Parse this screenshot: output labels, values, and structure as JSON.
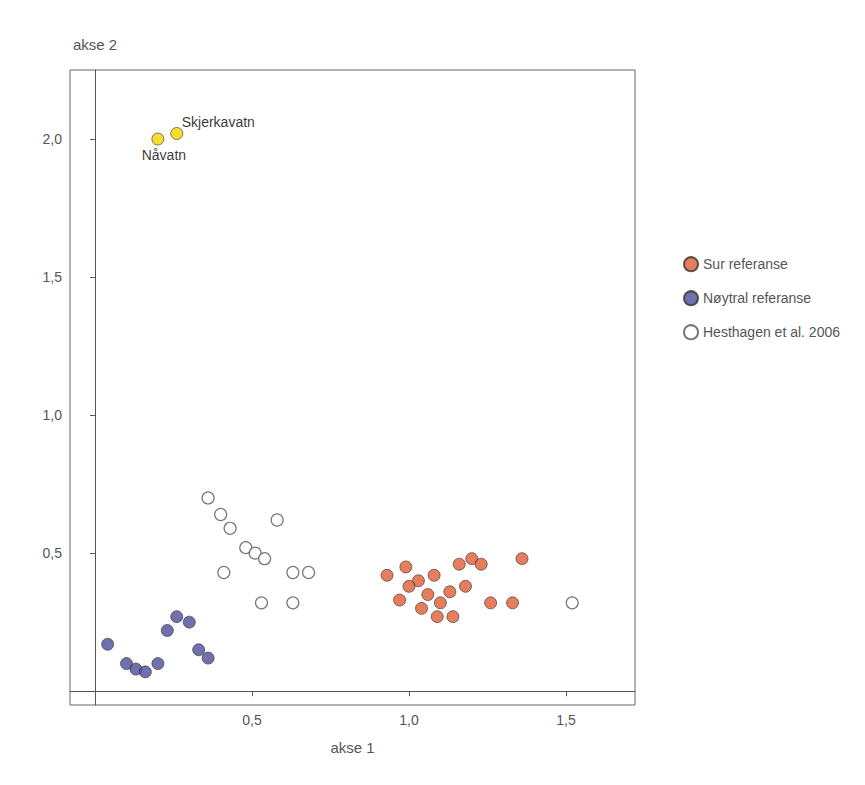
{
  "chart_data": {
    "type": "scatter",
    "xlabel": "akse 1",
    "ylabel": "akse 2",
    "xlim": [
      -0.08,
      1.72
    ],
    "ylim": [
      -0.05,
      2.25
    ],
    "xticks": [
      {
        "value": 0.5,
        "label": "0,5"
      },
      {
        "value": 1.0,
        "label": "1,0"
      },
      {
        "value": 1.5,
        "label": "1,5"
      }
    ],
    "yticks": [
      {
        "value": 0.5,
        "label": "0,5"
      },
      {
        "value": 1.0,
        "label": "1,0"
      },
      {
        "value": 1.5,
        "label": "1,5"
      },
      {
        "value": 2.0,
        "label": "2,0"
      }
    ],
    "grid": false,
    "legend": "right",
    "series": [
      {
        "name": "Sur referanse",
        "color": "#e05c35",
        "marker": "circle",
        "values": [
          [
            0.93,
            0.42
          ],
          [
            0.99,
            0.45
          ],
          [
            1.03,
            0.4
          ],
          [
            1.0,
            0.38
          ],
          [
            1.06,
            0.35
          ],
          [
            1.1,
            0.32
          ],
          [
            1.13,
            0.36
          ],
          [
            1.08,
            0.42
          ],
          [
            1.16,
            0.46
          ],
          [
            1.2,
            0.48
          ],
          [
            1.23,
            0.46
          ],
          [
            1.26,
            0.32
          ],
          [
            1.33,
            0.32
          ],
          [
            1.36,
            0.48
          ],
          [
            1.04,
            0.3
          ],
          [
            1.09,
            0.27
          ],
          [
            0.97,
            0.33
          ],
          [
            1.14,
            0.27
          ],
          [
            1.18,
            0.38
          ]
        ]
      },
      {
        "name": "Nøytral referanse",
        "color": "#4a4e9a",
        "marker": "circle",
        "values": [
          [
            0.04,
            0.17
          ],
          [
            0.1,
            0.1
          ],
          [
            0.13,
            0.08
          ],
          [
            0.16,
            0.07
          ],
          [
            0.2,
            0.1
          ],
          [
            0.23,
            0.22
          ],
          [
            0.26,
            0.27
          ],
          [
            0.3,
            0.25
          ],
          [
            0.33,
            0.15
          ],
          [
            0.36,
            0.12
          ]
        ]
      },
      {
        "name": "Hesthagen et al. 2006",
        "color": "#555555",
        "marker": "open circle",
        "values": [
          [
            0.36,
            0.7
          ],
          [
            0.4,
            0.64
          ],
          [
            0.43,
            0.59
          ],
          [
            0.48,
            0.52
          ],
          [
            0.51,
            0.5
          ],
          [
            0.54,
            0.48
          ],
          [
            0.58,
            0.62
          ],
          [
            0.41,
            0.43
          ],
          [
            0.63,
            0.43
          ],
          [
            0.68,
            0.43
          ],
          [
            0.53,
            0.32
          ],
          [
            0.63,
            0.32
          ],
          [
            1.52,
            0.32
          ]
        ]
      },
      {
        "color": "#f5d400",
        "marker": "circle",
        "values": [
          [
            0.2,
            2.0
          ],
          [
            0.26,
            2.02
          ]
        ]
      }
    ],
    "annotations": [
      {
        "text": "Skjerkavatn",
        "x": 0.26,
        "y": 2.02
      },
      {
        "text": "Nåvatn",
        "x": 0.2,
        "y": 2.0
      }
    ]
  }
}
